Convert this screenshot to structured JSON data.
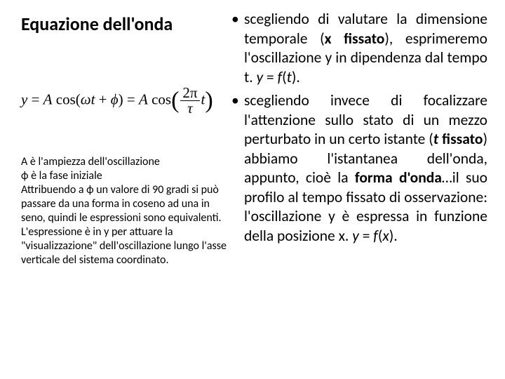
{
  "title": "Equazione dell'onda",
  "formula": {
    "lhs_var": "y",
    "eq": "=",
    "A": "A",
    "fn": "cos",
    "lpar": "(",
    "omega": "ω",
    "t": "t",
    "plus": "+",
    "phi": "ϕ",
    "rpar": ")",
    "frac_num": "2π",
    "frac_den": "τ"
  },
  "side_note": {
    "p1a": "A è l'ampiezza dell'oscillazione",
    "p1b": "ϕ è la fase iniziale",
    "p2": "Attribuendo a ϕ un valore di 90 gradi si può passare da una forma in coseno ad una in seno, quindi le espressioni sono equivalenti.",
    "p3": "L'espressione è in y per attuare la \"visualizzazione\" dell'oscillazione lungo l'asse verticale del sistema coordinato."
  },
  "bullets": {
    "dot": "•",
    "b1_html": "scegliendo di valutare la dimensione temporale (<b>x fissato</b>), esprimeremo l'oscillazione y in dipendenza dal tempo t. <i>y</i> = <i>f</i>(<i>t</i>).",
    "b2_html": "scegliendo invece di focalizzare l'attenzione sullo stato di un mezzo perturbato in un certo istante (<b><i>t</i> fissato</b>) abbiamo l'istantanea dell'onda, appunto, cioè la <b>forma d'onda</b>…il suo profilo al tempo fissato di osservazione: l'oscillazione y è espressa in funzione della posizione x. <i>y</i> = <i>f</i>(<i>x</i>)."
  },
  "colors": {
    "background": "#ffffff",
    "text": "#000000"
  }
}
